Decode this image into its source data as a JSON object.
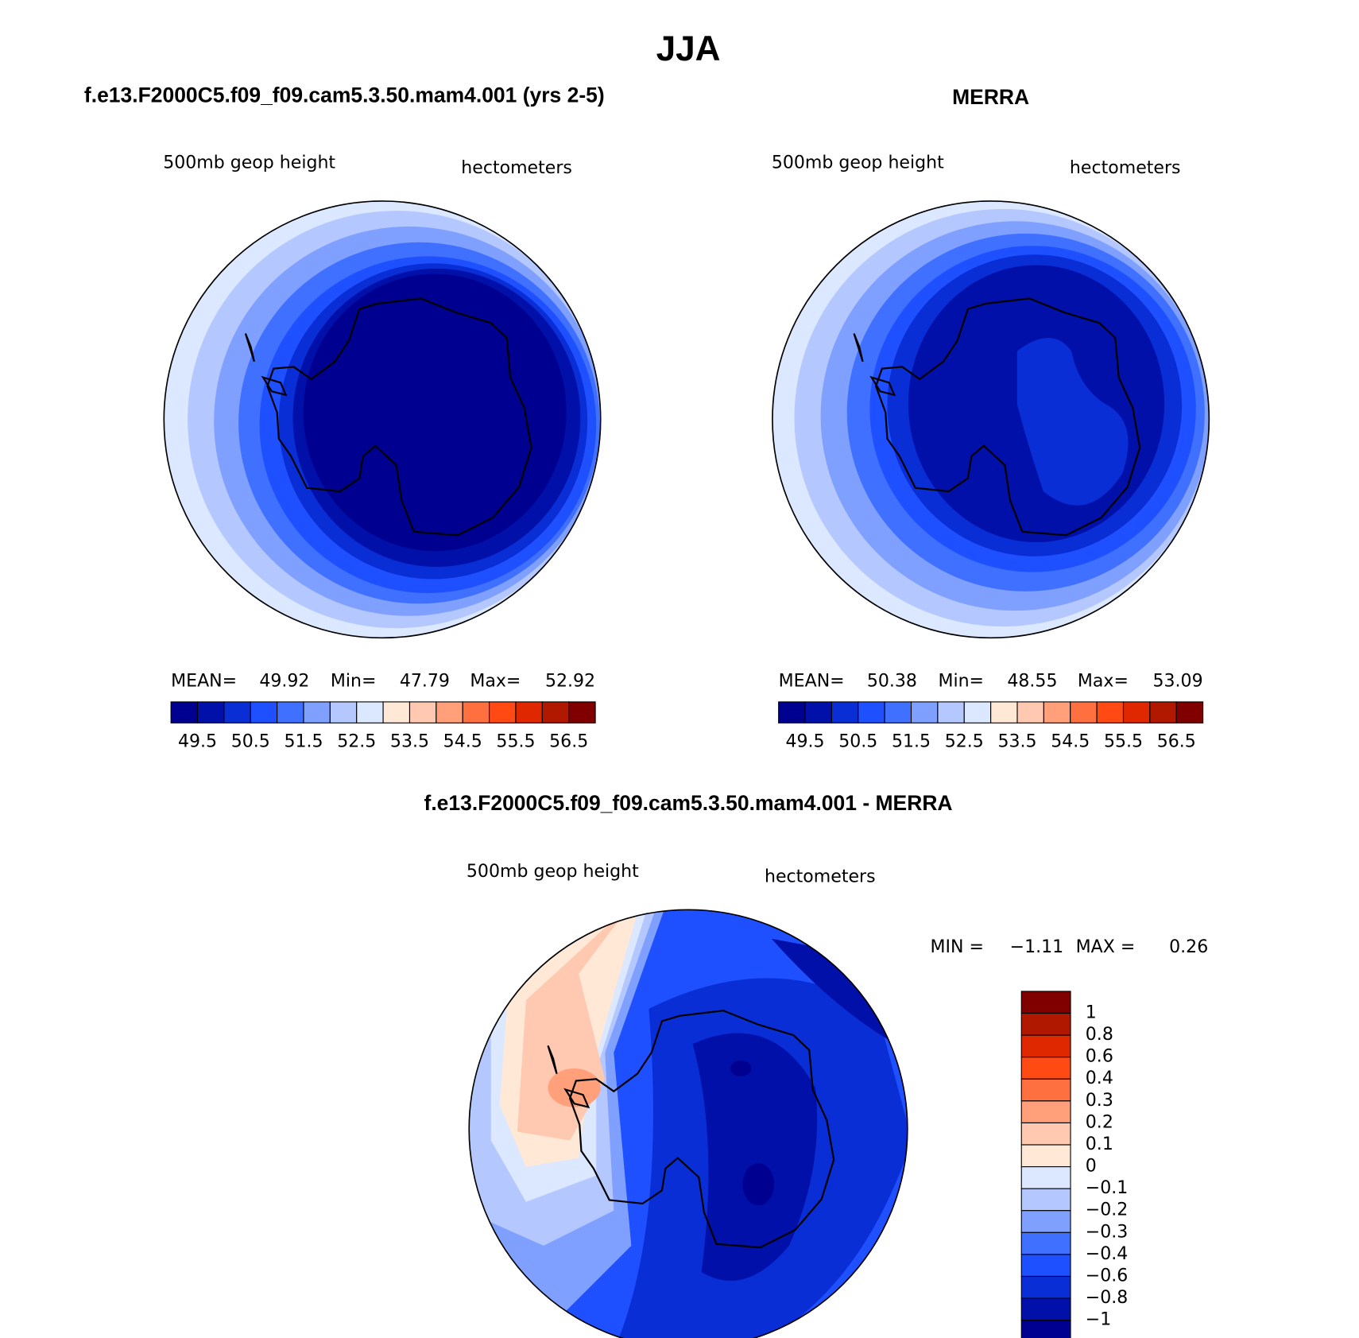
{
  "title": "JJA",
  "panels": [
    {
      "title": "f.e13.F2000C5.f09_f09.cam5.3.50.mam4.001 (yrs 2-5)",
      "variable": "500mb geop height",
      "units": "hectometers",
      "stats": [
        "MEAN=",
        "49.92",
        "Min=",
        "47.79",
        "Max=",
        "52.92"
      ],
      "colorbar": {
        "colors": [
          "#000090",
          "#0010a8",
          "#0a2ed6",
          "#1e50ff",
          "#4070ff",
          "#80a0ff",
          "#b4c8ff",
          "#dce8ff",
          "#ffe8d6",
          "#ffc8b0",
          "#ffa07a",
          "#ff7040",
          "#ff4a14",
          "#e02800",
          "#b01800",
          "#800000"
        ],
        "labels": [
          "49.5",
          "50.5",
          "51.5",
          "52.5",
          "53.5",
          "54.5",
          "55.5",
          "56.5"
        ]
      }
    },
    {
      "title": "MERRA",
      "variable": "500mb geop height",
      "units": "hectometers",
      "stats": [
        "MEAN=",
        "50.38",
        "Min=",
        "48.55",
        "Max=",
        "53.09"
      ],
      "colorbar": {
        "colors": [
          "#000090",
          "#0010a8",
          "#0a2ed6",
          "#1e50ff",
          "#4070ff",
          "#80a0ff",
          "#b4c8ff",
          "#dce8ff",
          "#ffe8d6",
          "#ffc8b0",
          "#ffa07a",
          "#ff7040",
          "#ff4a14",
          "#e02800",
          "#b01800",
          "#800000"
        ],
        "labels": [
          "49.5",
          "50.5",
          "51.5",
          "52.5",
          "53.5",
          "54.5",
          "55.5",
          "56.5"
        ]
      }
    },
    {
      "title": "f.e13.F2000C5.f09_f09.cam5.3.50.mam4.001 - MERRA",
      "variable": "500mb geop height",
      "units": "hectometers",
      "stats": [
        "MIN =",
        "−1.11",
        "MAX =",
        "0.26"
      ],
      "colorbar": {
        "colors": [
          "#800000",
          "#b01800",
          "#e02800",
          "#ff4a14",
          "#ff7040",
          "#ffa07a",
          "#ffc8b0",
          "#ffe8d6",
          "#dce8ff",
          "#b4c8ff",
          "#80a0ff",
          "#4070ff",
          "#1e50ff",
          "#0a2ed6",
          "#0010a8",
          "#000090"
        ],
        "labels": [
          "1",
          "0.8",
          "0.6",
          "0.4",
          "0.3",
          "0.2",
          "0.1",
          "0",
          "−0.1",
          "−0.2",
          "−0.3",
          "−0.4",
          "−0.6",
          "−0.8",
          "−1"
        ]
      }
    }
  ]
}
